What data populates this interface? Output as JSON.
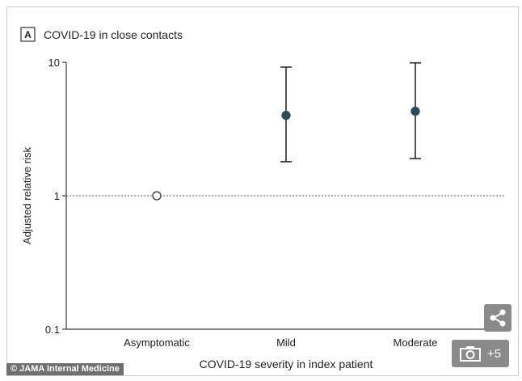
{
  "panel": {
    "letter": "A",
    "title": "COVID-19 in close contacts"
  },
  "chart_data": {
    "type": "scatter",
    "title": "COVID-19 in close contacts",
    "xlabel": "COVID-19 severity in index patient",
    "ylabel": "Adjusted relative risk",
    "categories": [
      "Asymptomatic",
      "Mild",
      "Moderate"
    ],
    "y_scale": "log",
    "ylim": [
      0.1,
      10
    ],
    "yticks": [
      "0.1",
      "1",
      "10"
    ],
    "reference_line": 1,
    "series": [
      {
        "values": [
          1,
          4.0,
          4.3
        ],
        "ci_low": [
          null,
          1.8,
          1.9
        ],
        "ci_high": [
          null,
          9.2,
          9.9
        ],
        "open_marker": [
          true,
          false,
          false
        ]
      }
    ],
    "colors": {
      "point": "#2f4a5a",
      "axis": "#3a3a3a",
      "ref": "#555555"
    }
  },
  "overlay": {
    "credit": "© JAMA Internal Medicine",
    "photo_count": "+5",
    "share_icon": "share-icon",
    "camera_icon": "camera-icon"
  }
}
